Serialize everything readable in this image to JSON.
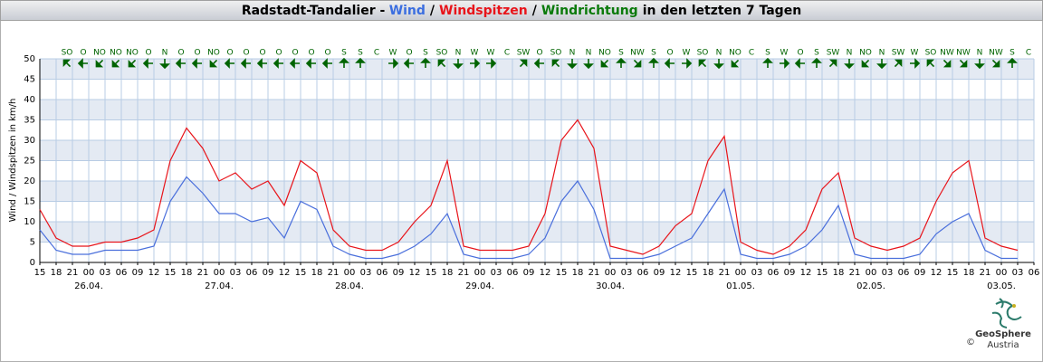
{
  "chart_data": {
    "type": "line",
    "title_prefix": "Radstadt-Tandalier -",
    "title_separator": "/",
    "title_suffix": "in den letzten 7 Tagen",
    "y_label": "Wind / Windspitzen in km/h",
    "x": [
      0,
      3,
      6,
      9,
      12,
      15,
      18,
      21,
      24,
      27,
      30,
      33,
      36,
      39,
      42,
      45,
      48,
      51,
      54,
      57,
      60,
      63,
      66,
      69,
      72,
      75,
      78,
      81,
      84,
      87,
      90,
      93,
      96,
      99,
      102,
      105,
      108,
      111,
      114,
      117,
      120,
      123,
      126,
      129,
      132,
      135,
      138,
      141,
      144,
      147,
      150,
      153,
      156,
      159,
      162,
      165,
      168,
      171,
      174,
      177,
      180
    ],
    "series": [
      {
        "name": "Wind",
        "color": "#4a6fdc",
        "values": [
          8,
          3,
          2,
          2,
          3,
          3,
          3,
          4,
          15,
          21,
          17,
          12,
          12,
          10,
          11,
          6,
          15,
          13,
          4,
          2,
          1,
          1,
          2,
          4,
          7,
          12,
          2,
          1,
          1,
          1,
          2,
          6,
          15,
          20,
          13,
          1,
          1,
          1,
          2,
          4,
          6,
          12,
          18,
          2,
          1,
          1,
          2,
          4,
          8,
          14,
          2,
          1,
          1,
          1,
          2,
          7,
          10,
          12,
          3,
          1,
          1
        ]
      },
      {
        "name": "Windspitzen",
        "color": "#e8141a",
        "values": [
          13,
          6,
          4,
          4,
          5,
          5,
          6,
          8,
          25,
          33,
          28,
          20,
          22,
          18,
          20,
          14,
          25,
          22,
          8,
          4,
          3,
          3,
          5,
          10,
          14,
          25,
          4,
          3,
          3,
          3,
          4,
          12,
          30,
          35,
          28,
          4,
          3,
          2,
          4,
          9,
          12,
          25,
          31,
          5,
          3,
          2,
          4,
          8,
          18,
          22,
          6,
          4,
          3,
          4,
          6,
          15,
          22,
          25,
          6,
          4,
          3
        ]
      }
    ],
    "wind_direction": {
      "name": "Windrichtung",
      "color": "#006400",
      "x": [
        5,
        8,
        11,
        14,
        17,
        20,
        23,
        26,
        29,
        32,
        35,
        38,
        41,
        44,
        47,
        50,
        53,
        56,
        59,
        62,
        65,
        68,
        71,
        74,
        77,
        80,
        83,
        86,
        89,
        92,
        95,
        98,
        101,
        104,
        107,
        110,
        113,
        116,
        119,
        122,
        125,
        128,
        131,
        134,
        137,
        140,
        143,
        146,
        149,
        152,
        155,
        158,
        161,
        164,
        167,
        170,
        173,
        176,
        179,
        182
      ],
      "labels": [
        "SO",
        "O",
        "NO",
        "NO",
        "NO",
        "O",
        "N",
        "O",
        "O",
        "NO",
        "O",
        "O",
        "O",
        "O",
        "O",
        "O",
        "O",
        "S",
        "S",
        "C",
        "W",
        "O",
        "S",
        "SO",
        "N",
        "W",
        "W",
        "C",
        "SW",
        "O",
        "SO",
        "N",
        "N",
        "NO",
        "S",
        "NW",
        "S",
        "O",
        "W",
        "SO",
        "N",
        "NO",
        "C",
        "S",
        "W",
        "O",
        "S",
        "SW",
        "N",
        "NO",
        "N",
        "SW",
        "W",
        "SO",
        "NW",
        "NW",
        "N",
        "NW",
        "S",
        "C"
      ]
    },
    "xlim": [
      0,
      183
    ],
    "xticks": [
      {
        "value": 0,
        "label": "15"
      },
      {
        "value": 3,
        "label": "18"
      },
      {
        "value": 6,
        "label": "21"
      },
      {
        "value": 9,
        "label": "00"
      },
      {
        "value": 12,
        "label": "03"
      },
      {
        "value": 15,
        "label": "06"
      },
      {
        "value": 18,
        "label": "09"
      },
      {
        "value": 21,
        "label": "12"
      },
      {
        "value": 24,
        "label": "15"
      },
      {
        "value": 27,
        "label": "18"
      },
      {
        "value": 30,
        "label": "21"
      },
      {
        "value": 33,
        "label": "00"
      },
      {
        "value": 36,
        "label": "03"
      },
      {
        "value": 39,
        "label": "06"
      },
      {
        "value": 42,
        "label": "09"
      },
      {
        "value": 45,
        "label": "12"
      },
      {
        "value": 48,
        "label": "15"
      },
      {
        "value": 51,
        "label": "18"
      },
      {
        "value": 54,
        "label": "21"
      },
      {
        "value": 57,
        "label": "00"
      },
      {
        "value": 60,
        "label": "03"
      },
      {
        "value": 63,
        "label": "06"
      },
      {
        "value": 66,
        "label": "09"
      },
      {
        "value": 69,
        "label": "12"
      },
      {
        "value": 72,
        "label": "15"
      },
      {
        "value": 75,
        "label": "18"
      },
      {
        "value": 78,
        "label": "21"
      },
      {
        "value": 81,
        "label": "00"
      },
      {
        "value": 84,
        "label": "03"
      },
      {
        "value": 87,
        "label": "06"
      },
      {
        "value": 90,
        "label": "09"
      },
      {
        "value": 93,
        "label": "12"
      },
      {
        "value": 96,
        "label": "15"
      },
      {
        "value": 99,
        "label": "18"
      },
      {
        "value": 102,
        "label": "21"
      },
      {
        "value": 105,
        "label": "00"
      },
      {
        "value": 108,
        "label": "03"
      },
      {
        "value": 111,
        "label": "06"
      },
      {
        "value": 114,
        "label": "09"
      },
      {
        "value": 117,
        "label": "12"
      },
      {
        "value": 120,
        "label": "15"
      },
      {
        "value": 123,
        "label": "18"
      },
      {
        "value": 126,
        "label": "21"
      },
      {
        "value": 129,
        "label": "00"
      },
      {
        "value": 132,
        "label": "03"
      },
      {
        "value": 135,
        "label": "06"
      },
      {
        "value": 138,
        "label": "09"
      },
      {
        "value": 141,
        "label": "12"
      },
      {
        "value": 144,
        "label": "15"
      },
      {
        "value": 147,
        "label": "18"
      },
      {
        "value": 150,
        "label": "21"
      },
      {
        "value": 153,
        "label": "00"
      },
      {
        "value": 156,
        "label": "03"
      },
      {
        "value": 159,
        "label": "06"
      },
      {
        "value": 162,
        "label": "09"
      },
      {
        "value": 165,
        "label": "12"
      },
      {
        "value": 168,
        "label": "15"
      },
      {
        "value": 171,
        "label": "18"
      },
      {
        "value": 174,
        "label": "21"
      },
      {
        "value": 177,
        "label": "00"
      },
      {
        "value": 180,
        "label": "03"
      },
      {
        "value": 183,
        "label": "06"
      }
    ],
    "day_labels": [
      {
        "value": 9,
        "label": "26.04."
      },
      {
        "value": 33,
        "label": "27.04."
      },
      {
        "value": 57,
        "label": "28.04."
      },
      {
        "value": 81,
        "label": "29.04."
      },
      {
        "value": 105,
        "label": "30.04."
      },
      {
        "value": 129,
        "label": "01.05."
      },
      {
        "value": 153,
        "label": "02.05."
      },
      {
        "value": 177,
        "label": "03.05."
      }
    ],
    "ylim": [
      0,
      50
    ],
    "yticks": [
      0,
      5,
      10,
      15,
      20,
      25,
      30,
      35,
      40,
      45,
      50
    ],
    "grid": true,
    "bands": true
  },
  "logo": {
    "name": "GeoSphere",
    "sub": "Austria",
    "copyright": "©"
  }
}
